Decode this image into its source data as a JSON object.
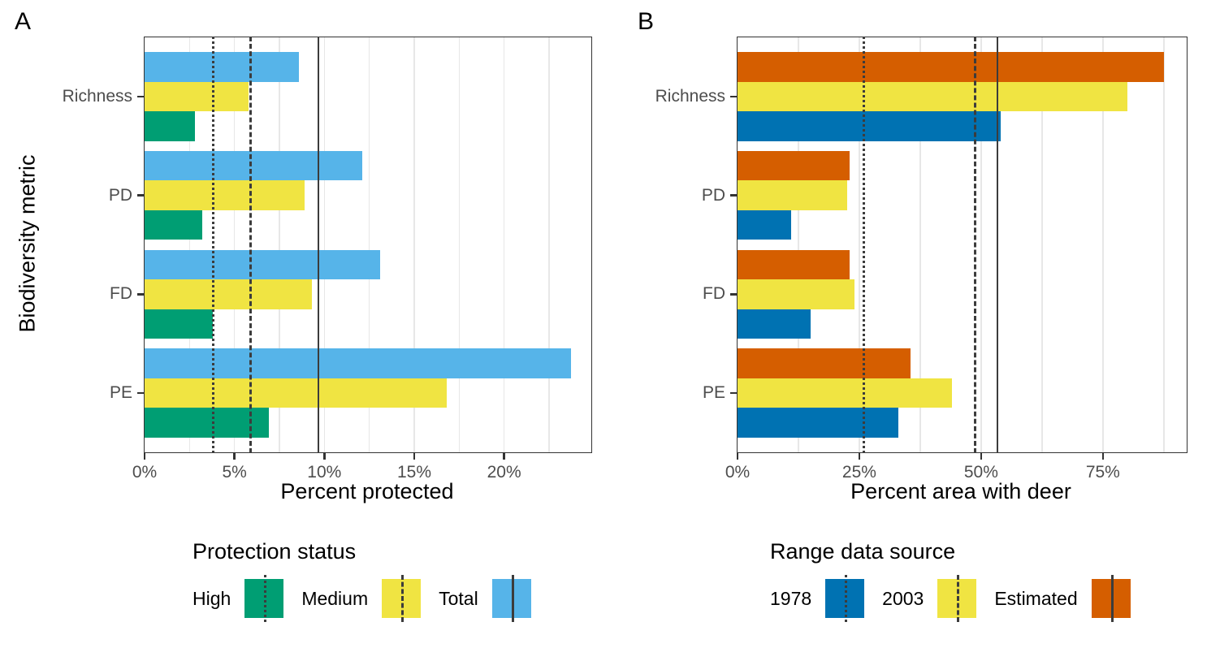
{
  "chart_data": [
    {
      "type": "bar",
      "orientation": "horizontal",
      "panel_label": "A",
      "xlabel": "Percent protected",
      "ylabel": "Biodiversity metric",
      "categories": [
        "Richness",
        "PD",
        "FD",
        "PE"
      ],
      "series": [
        {
          "name": "Total",
          "color": "#56B4E9",
          "values": [
            8.6,
            12.1,
            13.1,
            23.7
          ]
        },
        {
          "name": "Medium",
          "color": "#F0E442",
          "values": [
            5.8,
            8.9,
            9.3,
            16.8
          ]
        },
        {
          "name": "High",
          "color": "#009E73",
          "values": [
            2.8,
            3.2,
            3.8,
            6.9
          ]
        }
      ],
      "xlim": [
        0,
        24.85
      ],
      "x_ticks": [
        {
          "value": 0,
          "label": "0%"
        },
        {
          "value": 5,
          "label": "5%"
        },
        {
          "value": 10,
          "label": "10%"
        },
        {
          "value": 15,
          "label": "15%"
        },
        {
          "value": 20,
          "label": "20%"
        }
      ],
      "gridlines": [
        2.5,
        5,
        7.5,
        10,
        12.5,
        15,
        17.5,
        20,
        22.5
      ],
      "ref_lines": [
        {
          "style": "dotted",
          "value": 3.8
        },
        {
          "style": "dashed",
          "value": 5.9
        },
        {
          "style": "solid",
          "value": 9.7
        }
      ],
      "legend": {
        "title": "Protection status",
        "items": [
          {
            "label": "High",
            "color": "#009E73",
            "line": "dotted"
          },
          {
            "label": "Medium",
            "color": "#F0E442",
            "line": "dashed"
          },
          {
            "label": "Total",
            "color": "#56B4E9",
            "line": "solid"
          }
        ]
      }
    },
    {
      "type": "bar",
      "orientation": "horizontal",
      "panel_label": "B",
      "xlabel": "Percent area with deer",
      "ylabel": "",
      "categories": [
        "Richness",
        "PD",
        "FD",
        "PE"
      ],
      "series": [
        {
          "name": "Estimated",
          "color": "#D55E00",
          "values": [
            87.5,
            23,
            23,
            35.5
          ]
        },
        {
          "name": "2003",
          "color": "#F0E442",
          "values": [
            80,
            22.5,
            24,
            44
          ]
        },
        {
          "name": "1978",
          "color": "#0072B2",
          "values": [
            54,
            11,
            15,
            33
          ]
        }
      ],
      "xlim": [
        0,
        92.2
      ],
      "x_ticks": [
        {
          "value": 0,
          "label": "0%"
        },
        {
          "value": 25,
          "label": "25%"
        },
        {
          "value": 50,
          "label": "50%"
        },
        {
          "value": 75,
          "label": "75%"
        }
      ],
      "gridlines": [
        12.5,
        25,
        37.5,
        50,
        62.5,
        75,
        87.5
      ],
      "ref_lines": [
        {
          "style": "dotted",
          "value": 26
        },
        {
          "style": "dashed",
          "value": 48.8
        },
        {
          "style": "solid",
          "value": 53.5
        }
      ],
      "legend": {
        "title": "Range data source",
        "items": [
          {
            "label": "1978",
            "color": "#0072B2",
            "line": "dotted"
          },
          {
            "label": "2003",
            "color": "#F0E442",
            "line": "dashed"
          },
          {
            "label": "Estimated",
            "color": "#D55E00",
            "line": "solid"
          }
        ]
      }
    }
  ],
  "style": {
    "ref_line_color": "#3c3c3c",
    "grid_color": "#e7e7e7",
    "axis_text_color": "#4d4d4d"
  }
}
